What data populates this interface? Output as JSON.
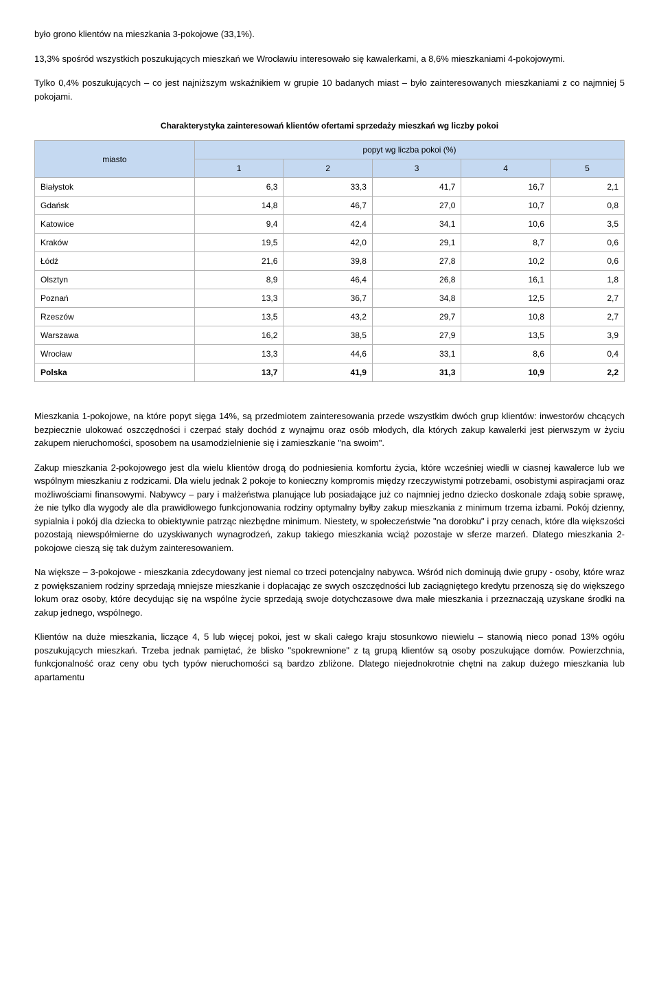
{
  "paragraphs": {
    "p1": "było grono klientów na mieszkania 3-pokojowe (33,1%).",
    "p2": "13,3% spośród wszystkich poszukujących mieszkań we Wrocławiu interesowało się kawalerkami, a 8,6% mieszkaniami 4-pokojowymi.",
    "p3": "Tylko 0,4% poszukujących – co jest najniższym wskaźnikiem w grupie 10 badanych miast – było zainteresowanych mieszkaniami z co najmniej 5 pokojami.",
    "p4": "Mieszkania 1-pokojowe, na które popyt sięga 14%, są przedmiotem zainteresowania przede wszystkim dwóch grup klientów: inwestorów chcących bezpiecznie ulokować oszczędności i czerpać stały dochód z wynajmu oraz osób młodych, dla których zakup kawalerki jest pierwszym w życiu zakupem nieruchomości, sposobem na usamodzielnienie się i zamieszkanie \"na swoim\".",
    "p5": "Zakup mieszkania 2-pokojowego jest dla wielu klientów drogą do podniesienia komfortu życia, które wcześniej wiedli w ciasnej kawalerce lub we wspólnym mieszkaniu z rodzicami. Dla wielu jednak 2 pokoje to konieczny kompromis między rzeczywistymi potrzebami, osobistymi aspiracjami oraz możliwościami finansowymi. Nabywcy – pary i małżeństwa planujące lub posiadające już co najmniej jedno dziecko doskonale zdają sobie sprawę, że nie tylko dla wygody ale dla prawidłowego funkcjonowania rodziny optymalny byłby zakup mieszkania z minimum trzema izbami. Pokój dzienny, sypialnia i pokój dla dziecka to obiektywnie patrząc niezbędne minimum. Niestety, w społeczeństwie \"na dorobku\" i przy cenach, które dla większości pozostają niewspółmierne do uzyskiwanych wynagrodzeń, zakup takiego mieszkania wciąż pozostaje w sferze marzeń. Dlatego mieszkania 2-pokojowe cieszą się tak dużym zainteresowaniem.",
    "p6": "Na większe – 3-pokojowe - mieszkania zdecydowany jest niemal co trzeci potencjalny nabywca. Wśród nich dominują dwie grupy - osoby, które wraz z powiększaniem rodziny sprzedają mniejsze mieszkanie i dopłacając ze swych oszczędności lub zaciągniętego kredytu przenoszą się do większego lokum oraz osoby, które decydując się na wspólne życie sprzedają swoje dotychczasowe dwa małe mieszkania i przeznaczają uzyskane środki na zakup jednego, wspólnego.",
    "p7": "Klientów na duże mieszkania, liczące 4, 5 lub więcej pokoi, jest w skali całego kraju stosunkowo niewielu – stanowią nieco ponad 13% ogółu poszukujących mieszkań. Trzeba jednak pamiętać, że blisko \"spokrewnione\" z tą grupą klientów są osoby poszukujące domów. Powierzchnia, funkcjonalność oraz ceny obu tych typów nieruchomości są bardzo zbliżone. Dlatego niejednokrotnie chętni na zakup dużego mieszkania lub apartamentu"
  },
  "table": {
    "title": "Charakterystyka zainteresowań klientów ofertami sprzedaży mieszkań wg liczby pokoi",
    "head_city": "miasto",
    "head_group": "popyt wg liczba pokoi (%)",
    "columns": [
      "1",
      "2",
      "3",
      "4",
      "5"
    ],
    "rows": [
      {
        "city": "Białystok",
        "v": [
          "6,3",
          "33,3",
          "41,7",
          "16,7",
          "2,1"
        ]
      },
      {
        "city": "Gdańsk",
        "v": [
          "14,8",
          "46,7",
          "27,0",
          "10,7",
          "0,8"
        ]
      },
      {
        "city": "Katowice",
        "v": [
          "9,4",
          "42,4",
          "34,1",
          "10,6",
          "3,5"
        ]
      },
      {
        "city": "Kraków",
        "v": [
          "19,5",
          "42,0",
          "29,1",
          "8,7",
          "0,6"
        ]
      },
      {
        "city": "Łódź",
        "v": [
          "21,6",
          "39,8",
          "27,8",
          "10,2",
          "0,6"
        ]
      },
      {
        "city": "Olsztyn",
        "v": [
          "8,9",
          "46,4",
          "26,8",
          "16,1",
          "1,8"
        ]
      },
      {
        "city": "Poznań",
        "v": [
          "13,3",
          "36,7",
          "34,8",
          "12,5",
          "2,7"
        ]
      },
      {
        "city": "Rzeszów",
        "v": [
          "13,5",
          "43,2",
          "29,7",
          "10,8",
          "2,7"
        ]
      },
      {
        "city": "Warszawa",
        "v": [
          "16,2",
          "38,5",
          "27,9",
          "13,5",
          "3,9"
        ]
      },
      {
        "city": "Wrocław",
        "v": [
          "13,3",
          "44,6",
          "33,1",
          "8,6",
          "0,4"
        ]
      }
    ],
    "total": {
      "city": "Polska",
      "v": [
        "13,7",
        "41,9",
        "31,3",
        "10,9",
        "2,2"
      ]
    },
    "styling": {
      "header_bg": "#c5d9f1",
      "border_color": "#b0b0b0",
      "font_size_pt": 12,
      "text_align_numeric": "right",
      "text_align_city": "left",
      "total_font_weight": "bold"
    }
  }
}
